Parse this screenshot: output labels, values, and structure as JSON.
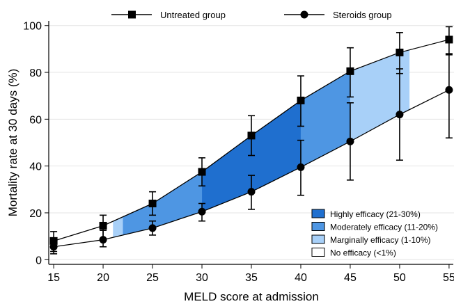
{
  "chart_data": {
    "type": "line",
    "xlabel": "MELD score at admission",
    "ylabel": "Mortality rate at 30 days (%)",
    "xlim": [
      14.5,
      55.5
    ],
    "ylim": [
      -2,
      102
    ],
    "x_ticks": [
      15,
      20,
      25,
      30,
      35,
      40,
      45,
      50,
      55
    ],
    "y_ticks": [
      0,
      20,
      40,
      60,
      80,
      100
    ],
    "x": [
      15,
      20,
      25,
      30,
      35,
      40,
      45,
      50,
      55
    ],
    "series": [
      {
        "name": "Untreated group",
        "marker": "square",
        "values": [
          8,
          14.5,
          24,
          37.5,
          53,
          68,
          80.5,
          88.5,
          94
        ],
        "ci_low": [
          3.5,
          9,
          19,
          31.5,
          44.5,
          57,
          69.5,
          79.5,
          87.5
        ],
        "ci_high": [
          12,
          19,
          29,
          43.5,
          61.5,
          78.5,
          90.5,
          97,
          99.5
        ]
      },
      {
        "name": "Steroids group",
        "marker": "circle",
        "values": [
          5.5,
          8.5,
          13.5,
          20.5,
          29,
          39.5,
          50.5,
          62,
          72.5
        ],
        "ci_low": [
          2.5,
          5.5,
          10.5,
          16.5,
          21.5,
          27.5,
          34,
          42.5,
          52
        ],
        "ci_high": [
          8.5,
          12.5,
          16.5,
          24,
          36,
          51,
          67,
          81.5,
          88
        ]
      }
    ],
    "efficacy_bands": [
      {
        "label": "Highly efficacy (21-30%)",
        "color": "#1f6fcf",
        "x_range": [
          30,
          40
        ]
      },
      {
        "label": "Moderately efficacy (11-20%)",
        "color": "#4e96e3",
        "x_range": [
          22,
          30
        ]
      },
      {
        "label": "Moderately efficacy (11-20%)",
        "color": "#4e96e3",
        "x_range": [
          40,
          45
        ]
      },
      {
        "label": "Marginally efficacy (1-10%)",
        "color": "#a8d0f8",
        "x_range": [
          21,
          22
        ]
      },
      {
        "label": "Marginally efficacy (1-10%)",
        "color": "#a8d0f8",
        "x_range": [
          45,
          51
        ]
      }
    ],
    "band_legend": [
      {
        "label": "Highly efficacy (21-30%)",
        "color": "#1f6fcf"
      },
      {
        "label": "Moderately efficacy (11-20%)",
        "color": "#4e96e3"
      },
      {
        "label": "Marginally efficacy (1-10%)",
        "color": "#a8d0f8"
      },
      {
        "label": "No efficacy (<1%)",
        "color": "#ffffff"
      }
    ],
    "legend_placement": "top (series), bottom-right (bands)",
    "grid": "horizontal"
  }
}
